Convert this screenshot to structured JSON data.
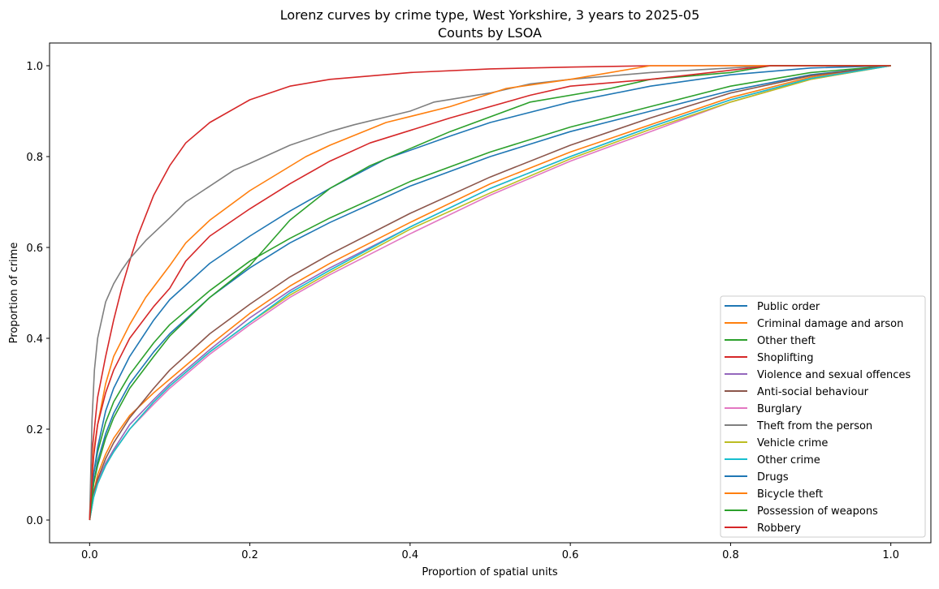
{
  "chart_data": {
    "type": "line",
    "title": "Lorenz curves by crime type, West Yorkshire, 3 years to 2025-05",
    "subtitle": "Counts by LSOA",
    "xlabel": "Proportion of spatial units",
    "ylabel": "Proportion of crime",
    "xlim": [
      -0.05,
      1.05
    ],
    "ylim": [
      -0.05,
      1.05
    ],
    "xticks": [
      0.0,
      0.2,
      0.4,
      0.6,
      0.8,
      1.0
    ],
    "yticks": [
      0.0,
      0.2,
      0.4,
      0.6,
      0.8,
      1.0
    ],
    "xtick_labels": [
      "0.0",
      "0.2",
      "0.4",
      "0.6",
      "0.8",
      "1.0"
    ],
    "ytick_labels": [
      "0.0",
      "0.2",
      "0.4",
      "0.6",
      "0.8",
      "1.0"
    ],
    "grid": false,
    "legend_position": "lower right",
    "series": [
      {
        "name": "Public order",
        "color": "#1f77b4",
        "points": [
          [
            0,
            0
          ],
          [
            0.005,
            0.08
          ],
          [
            0.01,
            0.13
          ],
          [
            0.02,
            0.19
          ],
          [
            0.03,
            0.235
          ],
          [
            0.05,
            0.3
          ],
          [
            0.08,
            0.37
          ],
          [
            0.1,
            0.41
          ],
          [
            0.15,
            0.49
          ],
          [
            0.2,
            0.555
          ],
          [
            0.25,
            0.61
          ],
          [
            0.3,
            0.655
          ],
          [
            0.4,
            0.735
          ],
          [
            0.5,
            0.8
          ],
          [
            0.6,
            0.855
          ],
          [
            0.7,
            0.9
          ],
          [
            0.8,
            0.945
          ],
          [
            0.9,
            0.98
          ],
          [
            1.0,
            1.0
          ]
        ]
      },
      {
        "name": "Criminal damage and arson",
        "color": "#ff7f0e",
        "points": [
          [
            0,
            0
          ],
          [
            0.005,
            0.06
          ],
          [
            0.01,
            0.1
          ],
          [
            0.02,
            0.145
          ],
          [
            0.03,
            0.18
          ],
          [
            0.05,
            0.23
          ],
          [
            0.08,
            0.28
          ],
          [
            0.1,
            0.31
          ],
          [
            0.15,
            0.385
          ],
          [
            0.2,
            0.455
          ],
          [
            0.25,
            0.515
          ],
          [
            0.3,
            0.565
          ],
          [
            0.4,
            0.655
          ],
          [
            0.5,
            0.74
          ],
          [
            0.6,
            0.81
          ],
          [
            0.7,
            0.87
          ],
          [
            0.8,
            0.93
          ],
          [
            0.9,
            0.975
          ],
          [
            1.0,
            1.0
          ]
        ]
      },
      {
        "name": "Other theft",
        "color": "#2ca02c",
        "points": [
          [
            0,
            0
          ],
          [
            0.005,
            0.1
          ],
          [
            0.01,
            0.15
          ],
          [
            0.02,
            0.215
          ],
          [
            0.03,
            0.26
          ],
          [
            0.05,
            0.32
          ],
          [
            0.08,
            0.39
          ],
          [
            0.1,
            0.43
          ],
          [
            0.15,
            0.505
          ],
          [
            0.2,
            0.57
          ],
          [
            0.25,
            0.62
          ],
          [
            0.3,
            0.665
          ],
          [
            0.4,
            0.745
          ],
          [
            0.5,
            0.81
          ],
          [
            0.6,
            0.865
          ],
          [
            0.7,
            0.91
          ],
          [
            0.8,
            0.955
          ],
          [
            0.9,
            0.985
          ],
          [
            1.0,
            1.0
          ]
        ]
      },
      {
        "name": "Shoplifting",
        "color": "#d62728",
        "points": [
          [
            0,
            0
          ],
          [
            0.003,
            0.15
          ],
          [
            0.01,
            0.27
          ],
          [
            0.02,
            0.36
          ],
          [
            0.03,
            0.44
          ],
          [
            0.04,
            0.51
          ],
          [
            0.05,
            0.57
          ],
          [
            0.06,
            0.625
          ],
          [
            0.07,
            0.67
          ],
          [
            0.08,
            0.715
          ],
          [
            0.1,
            0.78
          ],
          [
            0.12,
            0.83
          ],
          [
            0.15,
            0.875
          ],
          [
            0.2,
            0.925
          ],
          [
            0.25,
            0.955
          ],
          [
            0.3,
            0.97
          ],
          [
            0.4,
            0.985
          ],
          [
            0.5,
            0.993
          ],
          [
            0.6,
            0.997
          ],
          [
            0.7,
            1.0
          ],
          [
            1.0,
            1.0
          ]
        ]
      },
      {
        "name": "Violence and sexual offences",
        "color": "#9467bd",
        "points": [
          [
            0,
            0
          ],
          [
            0.005,
            0.055
          ],
          [
            0.01,
            0.085
          ],
          [
            0.02,
            0.125
          ],
          [
            0.03,
            0.155
          ],
          [
            0.05,
            0.21
          ],
          [
            0.08,
            0.265
          ],
          [
            0.1,
            0.3
          ],
          [
            0.15,
            0.375
          ],
          [
            0.2,
            0.445
          ],
          [
            0.25,
            0.505
          ],
          [
            0.3,
            0.555
          ],
          [
            0.4,
            0.645
          ],
          [
            0.5,
            0.73
          ],
          [
            0.6,
            0.8
          ],
          [
            0.7,
            0.865
          ],
          [
            0.8,
            0.925
          ],
          [
            0.9,
            0.972
          ],
          [
            1.0,
            1.0
          ]
        ]
      },
      {
        "name": "Anti-social behaviour",
        "color": "#8c564b",
        "points": [
          [
            0,
            0
          ],
          [
            0.005,
            0.06
          ],
          [
            0.01,
            0.09
          ],
          [
            0.02,
            0.135
          ],
          [
            0.03,
            0.17
          ],
          [
            0.05,
            0.225
          ],
          [
            0.08,
            0.29
          ],
          [
            0.1,
            0.33
          ],
          [
            0.15,
            0.41
          ],
          [
            0.2,
            0.475
          ],
          [
            0.25,
            0.535
          ],
          [
            0.3,
            0.585
          ],
          [
            0.4,
            0.675
          ],
          [
            0.5,
            0.755
          ],
          [
            0.6,
            0.825
          ],
          [
            0.7,
            0.885
          ],
          [
            0.8,
            0.94
          ],
          [
            0.9,
            0.978
          ],
          [
            1.0,
            1.0
          ]
        ]
      },
      {
        "name": "Burglary",
        "color": "#e377c2",
        "points": [
          [
            0,
            0
          ],
          [
            0.005,
            0.05
          ],
          [
            0.01,
            0.08
          ],
          [
            0.02,
            0.12
          ],
          [
            0.03,
            0.15
          ],
          [
            0.05,
            0.2
          ],
          [
            0.08,
            0.255
          ],
          [
            0.1,
            0.29
          ],
          [
            0.15,
            0.365
          ],
          [
            0.2,
            0.43
          ],
          [
            0.25,
            0.49
          ],
          [
            0.3,
            0.54
          ],
          [
            0.4,
            0.63
          ],
          [
            0.5,
            0.715
          ],
          [
            0.6,
            0.79
          ],
          [
            0.7,
            0.855
          ],
          [
            0.8,
            0.92
          ],
          [
            0.9,
            0.97
          ],
          [
            1.0,
            1.0
          ]
        ]
      },
      {
        "name": "Theft from the person",
        "color": "#7f7f7f",
        "points": [
          [
            0,
            0
          ],
          [
            0.003,
            0.22
          ],
          [
            0.006,
            0.33
          ],
          [
            0.01,
            0.4
          ],
          [
            0.02,
            0.48
          ],
          [
            0.03,
            0.52
          ],
          [
            0.04,
            0.55
          ],
          [
            0.05,
            0.575
          ],
          [
            0.07,
            0.615
          ],
          [
            0.1,
            0.665
          ],
          [
            0.12,
            0.7
          ],
          [
            0.15,
            0.735
          ],
          [
            0.18,
            0.77
          ],
          [
            0.2,
            0.785
          ],
          [
            0.25,
            0.825
          ],
          [
            0.3,
            0.855
          ],
          [
            0.33,
            0.87
          ],
          [
            0.4,
            0.9
          ],
          [
            0.43,
            0.92
          ],
          [
            0.5,
            0.94
          ],
          [
            0.55,
            0.96
          ],
          [
            0.6,
            0.97
          ],
          [
            0.7,
            0.985
          ],
          [
            0.8,
            0.995
          ],
          [
            0.85,
            1.0
          ],
          [
            1.0,
            1.0
          ]
        ]
      },
      {
        "name": "Vehicle crime",
        "color": "#bcbd22",
        "points": [
          [
            0,
            0
          ],
          [
            0.005,
            0.05
          ],
          [
            0.01,
            0.08
          ],
          [
            0.02,
            0.12
          ],
          [
            0.03,
            0.15
          ],
          [
            0.05,
            0.2
          ],
          [
            0.08,
            0.26
          ],
          [
            0.1,
            0.295
          ],
          [
            0.15,
            0.37
          ],
          [
            0.2,
            0.435
          ],
          [
            0.25,
            0.495
          ],
          [
            0.3,
            0.545
          ],
          [
            0.4,
            0.64
          ],
          [
            0.5,
            0.72
          ],
          [
            0.6,
            0.795
          ],
          [
            0.7,
            0.86
          ],
          [
            0.8,
            0.92
          ],
          [
            0.9,
            0.97
          ],
          [
            1.0,
            1.0
          ]
        ]
      },
      {
        "name": "Other crime",
        "color": "#17becf",
        "points": [
          [
            0,
            0
          ],
          [
            0.005,
            0.05
          ],
          [
            0.01,
            0.08
          ],
          [
            0.02,
            0.12
          ],
          [
            0.03,
            0.15
          ],
          [
            0.05,
            0.2
          ],
          [
            0.08,
            0.26
          ],
          [
            0.1,
            0.295
          ],
          [
            0.15,
            0.37
          ],
          [
            0.2,
            0.435
          ],
          [
            0.25,
            0.5
          ],
          [
            0.3,
            0.55
          ],
          [
            0.4,
            0.645
          ],
          [
            0.5,
            0.73
          ],
          [
            0.6,
            0.8
          ],
          [
            0.7,
            0.865
          ],
          [
            0.8,
            0.925
          ],
          [
            0.9,
            0.972
          ],
          [
            1.0,
            1.0
          ]
        ]
      },
      {
        "name": "Drugs",
        "color": "#1f77b4",
        "points": [
          [
            0,
            0
          ],
          [
            0.005,
            0.1
          ],
          [
            0.01,
            0.16
          ],
          [
            0.02,
            0.24
          ],
          [
            0.03,
            0.29
          ],
          [
            0.05,
            0.36
          ],
          [
            0.08,
            0.44
          ],
          [
            0.1,
            0.485
          ],
          [
            0.15,
            0.565
          ],
          [
            0.2,
            0.625
          ],
          [
            0.25,
            0.68
          ],
          [
            0.3,
            0.73
          ],
          [
            0.37,
            0.795
          ],
          [
            0.45,
            0.845
          ],
          [
            0.5,
            0.875
          ],
          [
            0.6,
            0.92
          ],
          [
            0.7,
            0.955
          ],
          [
            0.8,
            0.98
          ],
          [
            0.9,
            0.995
          ],
          [
            1.0,
            1.0
          ]
        ]
      },
      {
        "name": "Bicycle theft",
        "color": "#ff7f0e",
        "points": [
          [
            0,
            0
          ],
          [
            0.005,
            0.15
          ],
          [
            0.01,
            0.21
          ],
          [
            0.02,
            0.3
          ],
          [
            0.03,
            0.36
          ],
          [
            0.05,
            0.43
          ],
          [
            0.07,
            0.49
          ],
          [
            0.1,
            0.56
          ],
          [
            0.12,
            0.61
          ],
          [
            0.15,
            0.66
          ],
          [
            0.2,
            0.725
          ],
          [
            0.27,
            0.8
          ],
          [
            0.3,
            0.825
          ],
          [
            0.37,
            0.875
          ],
          [
            0.45,
            0.91
          ],
          [
            0.52,
            0.95
          ],
          [
            0.6,
            0.97
          ],
          [
            0.7,
            1.0
          ],
          [
            1.0,
            1.0
          ]
        ]
      },
      {
        "name": "Possession of weapons",
        "color": "#2ca02c",
        "points": [
          [
            0,
            0
          ],
          [
            0.005,
            0.08
          ],
          [
            0.01,
            0.12
          ],
          [
            0.02,
            0.18
          ],
          [
            0.03,
            0.225
          ],
          [
            0.05,
            0.29
          ],
          [
            0.08,
            0.36
          ],
          [
            0.1,
            0.405
          ],
          [
            0.15,
            0.49
          ],
          [
            0.2,
            0.56
          ],
          [
            0.25,
            0.66
          ],
          [
            0.3,
            0.73
          ],
          [
            0.35,
            0.78
          ],
          [
            0.45,
            0.855
          ],
          [
            0.55,
            0.92
          ],
          [
            0.65,
            0.95
          ],
          [
            0.7,
            0.97
          ],
          [
            0.8,
            0.985
          ],
          [
            0.85,
            1.0
          ],
          [
            1.0,
            1.0
          ]
        ]
      },
      {
        "name": "Robbery",
        "color": "#d62728",
        "points": [
          [
            0,
            0
          ],
          [
            0.005,
            0.14
          ],
          [
            0.01,
            0.21
          ],
          [
            0.02,
            0.28
          ],
          [
            0.03,
            0.33
          ],
          [
            0.05,
            0.4
          ],
          [
            0.08,
            0.47
          ],
          [
            0.1,
            0.51
          ],
          [
            0.12,
            0.57
          ],
          [
            0.15,
            0.625
          ],
          [
            0.2,
            0.685
          ],
          [
            0.25,
            0.74
          ],
          [
            0.3,
            0.79
          ],
          [
            0.35,
            0.83
          ],
          [
            0.45,
            0.885
          ],
          [
            0.55,
            0.935
          ],
          [
            0.6,
            0.955
          ],
          [
            0.7,
            0.97
          ],
          [
            0.8,
            0.99
          ],
          [
            0.85,
            1.0
          ],
          [
            1.0,
            1.0
          ]
        ]
      }
    ]
  }
}
